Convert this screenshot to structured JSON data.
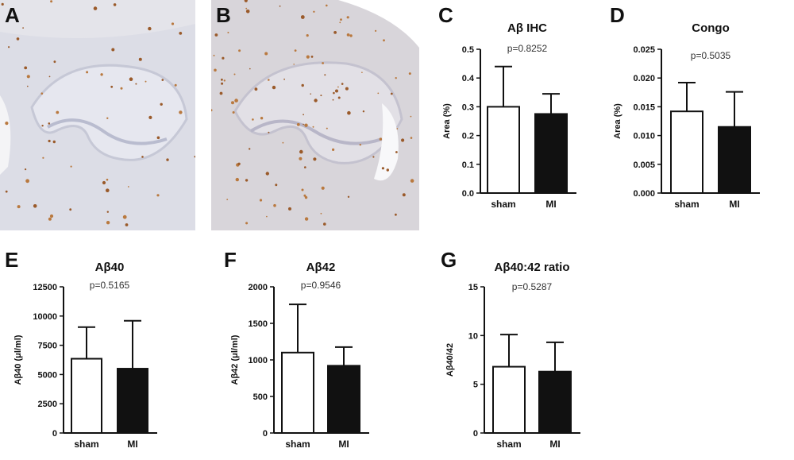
{
  "panels": {
    "A": "A",
    "B": "B",
    "C": "C",
    "D": "D",
    "E": "E",
    "F": "F",
    "G": "G"
  },
  "chart_data": [
    {
      "id": "C",
      "type": "bar",
      "title": "Aβ IHC",
      "annotation": "p=0.8252",
      "ylabel": "Area (%)",
      "categories": [
        "sham",
        "MI"
      ],
      "values": [
        0.3,
        0.275
      ],
      "errors": [
        0.14,
        0.07
      ],
      "ylim": [
        0,
        0.5
      ],
      "yticks": [
        "0.0",
        "0.1",
        "0.2",
        "0.3",
        "0.4",
        "0.5"
      ],
      "fills": [
        "#ffffff",
        "#111111"
      ]
    },
    {
      "id": "D",
      "type": "bar",
      "title": "Congo",
      "annotation": "p=0.5035",
      "ylabel": "Area (%)",
      "categories": [
        "sham",
        "MI"
      ],
      "values": [
        0.0142,
        0.0115
      ],
      "errors": [
        0.005,
        0.0061
      ],
      "ylim": [
        0,
        0.025
      ],
      "yticks": [
        "0.000",
        "0.005",
        "0.010",
        "0.015",
        "0.020",
        "0.025"
      ],
      "fills": [
        "#ffffff",
        "#111111"
      ]
    },
    {
      "id": "E",
      "type": "bar",
      "title": "Aβ40",
      "annotation": "p=0.5165",
      "ylabel": "Aβ40 (μl/ml)",
      "categories": [
        "sham",
        "MI"
      ],
      "values": [
        6350,
        5500
      ],
      "errors": [
        2700,
        4100
      ],
      "ylim": [
        0,
        12500
      ],
      "yticks": [
        "0",
        "2500",
        "5000",
        "7500",
        "10000",
        "12500"
      ],
      "fills": [
        "#ffffff",
        "#111111"
      ]
    },
    {
      "id": "F",
      "type": "bar",
      "title": "Aβ42",
      "annotation": "p=0.9546",
      "ylabel": "Aβ42 (μl/ml)",
      "categories": [
        "sham",
        "MI"
      ],
      "values": [
        1100,
        920
      ],
      "errors": [
        660,
        255
      ],
      "ylim": [
        0,
        2000
      ],
      "yticks": [
        "0",
        "500",
        "1000",
        "1500",
        "2000"
      ],
      "fills": [
        "#ffffff",
        "#111111"
      ]
    },
    {
      "id": "G",
      "type": "bar",
      "title": "Aβ40:42 ratio",
      "annotation": "p=0.5287",
      "ylabel": "Aβ40/42",
      "categories": [
        "sham",
        "MI"
      ],
      "values": [
        6.8,
        6.3
      ],
      "errors": [
        3.3,
        3.0
      ],
      "ylim": [
        0,
        15
      ],
      "yticks": [
        "0",
        "5",
        "10",
        "15"
      ],
      "fills": [
        "#ffffff",
        "#111111"
      ]
    }
  ]
}
